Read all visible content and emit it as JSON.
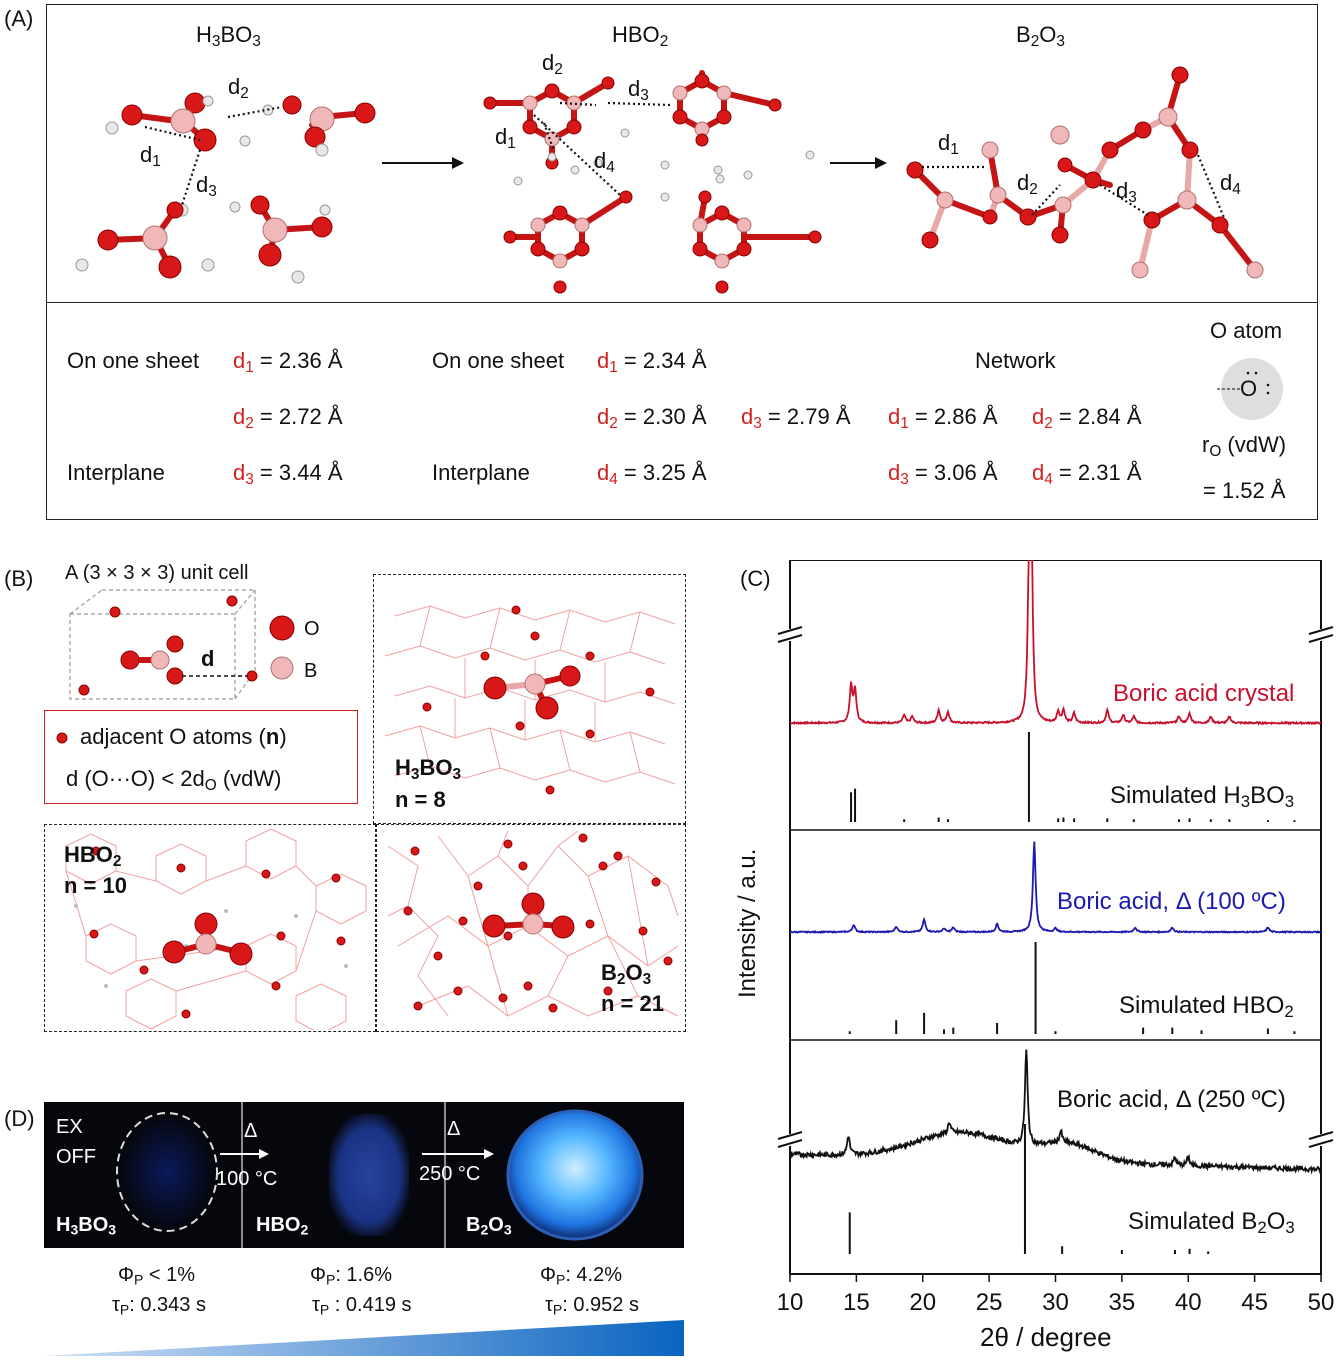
{
  "panelA": {
    "label": "(A)",
    "titles": [
      "H3BO3",
      "HBO2",
      "B2O3"
    ],
    "dlabels": [
      "d1",
      "d2",
      "d3",
      "d4"
    ],
    "col1": {
      "row1_label": "On one sheet",
      "d1": "d1 = 2.36 Å",
      "d2": "d2 = 2.72 Å",
      "row3_label": "Interplane",
      "d3": "d3 = 3.44 Å"
    },
    "col2": {
      "row1_label": "On one sheet",
      "d1": "d1 = 2.34 Å",
      "d2": "d2 = 2.30 Å",
      "d3": "d3 = 2.79 Å",
      "row3_label": "Interplane",
      "d4": "d4 = 3.25 Å"
    },
    "col3": {
      "title": "Network",
      "d1": "d1 = 2.86 Å",
      "d2": "d2 = 2.84 Å",
      "d3": "d3 = 3.06 Å",
      "d4": "d4 = 2.31 Å"
    },
    "oatom": {
      "title": "O atom",
      "glyph": "O",
      "radius_label": "rO (vdW)",
      "radius_value": "= 1.52 Å"
    }
  },
  "panelB": {
    "label": "(B)",
    "cell_title": "A (3 × 3 × 3) unit cell",
    "legend_o": "O",
    "legend_b": "B",
    "d_label": "d",
    "box_line1": "adjacent O atoms (n)",
    "box_line2": "d (O···O) < 2dO (vdW)",
    "h3bo3": {
      "name": "H3BO3",
      "n": "n = 8"
    },
    "hbo2": {
      "name": "HBO2",
      "n": "n = 10"
    },
    "b2o3": {
      "name": "B2O3",
      "n": "n = 21"
    }
  },
  "panelC": {
    "label": "(C)",
    "ylabel": "Intensity / a.u.",
    "xlabel": "2θ / degree",
    "traces": [
      "Boric acid crystal",
      "Simulated H3BO3",
      "Boric acid, Δ (100 ºC)",
      "Simulated HBO2",
      "Boric acid, Δ (250 ºC)",
      "Simulated B2O3"
    ],
    "colors": {
      "crystal": "#c8102e",
      "heated100": "#1a1ab0",
      "heated250": "#111111",
      "sim": "#111111"
    }
  },
  "panelD": {
    "label": "(D)",
    "ex_line1": "EX",
    "ex_line2": "OFF",
    "arrow1_delta": "Δ",
    "arrow1_temp": "100 °C",
    "arrow2_delta": "Δ",
    "arrow2_temp": "250 °C",
    "names": [
      "H3BO3",
      "HBO2",
      "B2O3"
    ],
    "qy": [
      "ΦP < 1%",
      "ΦP: 1.6%",
      "ΦP: 4.2%"
    ],
    "tau": [
      "τP: 0.343 s",
      "τP : 0.419 s",
      "τP: 0.952 s"
    ]
  },
  "chart_data": [
    {
      "type": "line",
      "title": "",
      "xlabel": "2θ / degree",
      "ylabel": "Intensity / a.u.",
      "xlim": [
        10,
        50
      ],
      "xticks": [
        10,
        15,
        20,
        25,
        30,
        35,
        40,
        45,
        50
      ],
      "series": [
        {
          "name": "Boric acid crystal",
          "peaks_x": [
            14.6,
            14.9,
            18.6,
            19.2,
            21.2,
            21.9,
            28.0,
            28.2,
            30.2,
            30.6,
            31.4,
            33.9,
            35.1,
            35.9,
            39.3,
            40.1,
            41.7,
            43.1
          ],
          "peaks_rel": [
            0.23,
            0.2,
            0.05,
            0.04,
            0.08,
            0.07,
            0.85,
            0.95,
            0.07,
            0.08,
            0.06,
            0.08,
            0.05,
            0.04,
            0.04,
            0.06,
            0.04,
            0.04
          ]
        },
        {
          "name": "Boric acid, Δ (100 ºC)",
          "peaks_x": [
            14.8,
            18.0,
            20.1,
            21.6,
            22.3,
            25.6,
            28.4,
            30.0,
            36.0,
            38.8,
            46.0
          ],
          "peaks_rel": [
            0.08,
            0.06,
            0.14,
            0.04,
            0.05,
            0.09,
            1.0,
            0.04,
            0.05,
            0.05,
            0.05
          ]
        },
        {
          "name": "Boric acid, Δ (250 ºC)",
          "peaks_x": [
            14.4,
            22.0,
            27.8,
            30.4,
            39.0,
            40.0
          ],
          "peaks_rel": [
            0.2,
            0.12,
            1.0,
            0.12,
            0.08,
            0.09
          ]
        },
        {
          "name": "Simulated H3BO3",
          "peaks_x": [
            14.6,
            14.9,
            18.6,
            21.2,
            21.9,
            28.0,
            30.2,
            30.6,
            31.4,
            33.9,
            35.9,
            39.3,
            40.1,
            41.7,
            43.1,
            46.0,
            48.0
          ],
          "peaks_rel": [
            0.33,
            0.37,
            0.03,
            0.05,
            0.03,
            1.0,
            0.04,
            0.05,
            0.04,
            0.04,
            0.03,
            0.03,
            0.04,
            0.03,
            0.03,
            0.02,
            0.02
          ]
        },
        {
          "name": "Simulated HBO2",
          "peaks_x": [
            14.5,
            18.0,
            20.1,
            21.6,
            22.3,
            25.6,
            28.5,
            30.0,
            36.6,
            38.8,
            41.0,
            46.0,
            48.0
          ],
          "peaks_rel": [
            0.03,
            0.15,
            0.23,
            0.05,
            0.07,
            0.12,
            1.0,
            0.03,
            0.07,
            0.07,
            0.04,
            0.06,
            0.03
          ]
        },
        {
          "name": "Simulated B2O3",
          "peaks_x": [
            14.5,
            27.7,
            30.5,
            35.0,
            39.0,
            40.1,
            41.5
          ],
          "peaks_rel": [
            0.32,
            1.0,
            0.06,
            0.03,
            0.03,
            0.04,
            0.02
          ]
        }
      ]
    }
  ]
}
